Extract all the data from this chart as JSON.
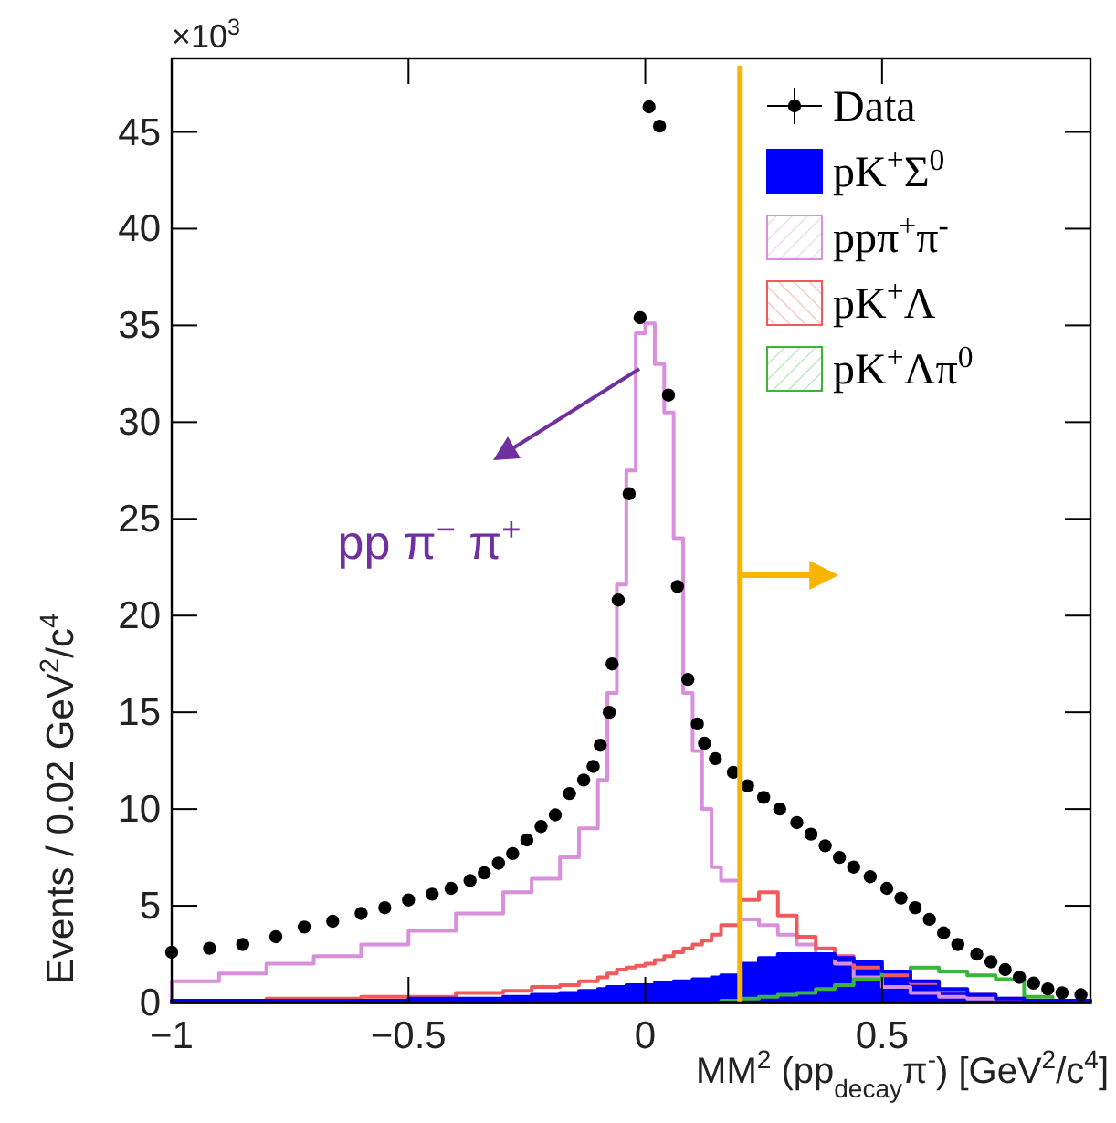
{
  "chart_data": {
    "type": "histogram",
    "xlabel": "MM$^{2}$ (pp$_{decay}$π$^{-}$) [GeV$^{2}$/c$^{4}$]",
    "ylabel": "Events / 0.02 GeV$^{2}$/c$^{4}$",
    "annotations": [
      "×10$^{3}$",
      "pp π$^{−}$ π$^{+}$"
    ],
    "xlim": [
      -1,
      0.94
    ],
    "ylim": [
      0,
      48.8
    ],
    "xticks": [
      {
        "value": -1,
        "label": "−1"
      },
      {
        "value": -0.5,
        "label": "−0.5"
      },
      0,
      0.5
    ],
    "yticks": [
      0,
      5,
      10,
      15,
      20,
      25,
      30,
      35,
      40,
      45
    ],
    "bins": [
      -1,
      -0.9,
      -0.8,
      -0.7,
      -0.6,
      -0.5,
      -0.4,
      -0.3,
      -0.24,
      -0.18,
      -0.14,
      -0.1,
      -0.08,
      -0.06,
      -0.04,
      -0.02,
      0,
      0.02,
      0.04,
      0.06,
      0.08,
      0.1,
      0.12,
      0.14,
      0.16,
      0.2,
      0.24,
      0.28,
      0.32,
      0.36,
      0.4,
      0.44,
      0.5,
      0.56,
      0.62,
      0.68,
      0.74,
      0.8,
      0.86,
      0.94
    ],
    "series": [
      {
        "name": "Data",
        "type": "scatter",
        "marker": "circle",
        "color": "#000000",
        "x": [
          -1,
          -0.92,
          -0.85,
          -0.78,
          -0.72,
          -0.66,
          -0.6,
          -0.55,
          -0.5,
          -0.45,
          -0.41,
          -0.37,
          -0.34,
          -0.31,
          -0.28,
          -0.25,
          -0.22,
          -0.19,
          -0.16,
          -0.13,
          -0.11,
          -0.095,
          -0.076,
          -0.07,
          -0.057,
          -0.034,
          -0.011,
          0.008,
          0.03,
          0.049,
          0.068,
          0.09,
          0.11,
          0.125,
          0.148,
          0.186,
          0.216,
          0.25,
          0.284,
          0.32,
          0.35,
          0.38,
          0.41,
          0.44,
          0.475,
          0.51,
          0.54,
          0.57,
          0.6,
          0.63,
          0.66,
          0.7,
          0.73,
          0.76,
          0.79,
          0.82,
          0.85,
          0.88,
          0.92
        ],
        "values": [
          2.6,
          2.8,
          3.0,
          3.4,
          3.9,
          4.2,
          4.6,
          4.9,
          5.3,
          5.6,
          5.9,
          6.3,
          6.7,
          7.2,
          7.7,
          8.4,
          9.1,
          9.7,
          10.8,
          11.5,
          12.2,
          13.3,
          15,
          17.5,
          20.8,
          26.3,
          35.4,
          46.3,
          45.3,
          31.4,
          21.5,
          16.7,
          14.4,
          13.4,
          12.6,
          11.9,
          11.2,
          10.6,
          10,
          9.3,
          8.7,
          8.1,
          7.5,
          7.0,
          6.5,
          5.9,
          5.4,
          4.9,
          4.3,
          3.6,
          3.0,
          2.5,
          2.1,
          1.7,
          1.3,
          1.0,
          0.7,
          0.5,
          0.4
        ]
      },
      {
        "name": "pK$^{+}$Σ$^{0}$",
        "color": "#0000ff",
        "values": [
          0.1,
          0.1,
          0.1,
          0.1,
          0.1,
          0.2,
          0.2,
          0.3,
          0.4,
          0.5,
          0.6,
          0.7,
          0.8,
          0.8,
          0.9,
          0.9,
          0.9,
          1.0,
          1.0,
          1.1,
          1.1,
          1.2,
          1.2,
          1.3,
          1.4,
          2.0,
          2.3,
          2.5,
          2.5,
          2.5,
          2.3,
          2.1,
          1.6,
          1.1,
          0.7,
          0.4,
          0.2,
          0.1,
          0.1
        ]
      },
      {
        "name": "ppπ$^{+}$π$^{-}$",
        "color": "#d98fdc",
        "values": [
          1.1,
          1.5,
          2.0,
          2.4,
          3.0,
          3.7,
          4.6,
          5.7,
          6.4,
          7.5,
          9.0,
          11.5,
          16,
          21.6,
          27.5,
          34.6,
          35.1,
          33,
          30.5,
          24,
          16,
          13,
          10,
          7,
          6.3,
          4.3,
          4.0,
          3.5,
          3.0,
          2.5,
          2.0,
          1.3,
          0.8,
          0.5,
          0.3,
          0.2,
          0.1,
          0.1,
          0
        ]
      },
      {
        "name": "pK$^{+}$Λ",
        "color": "#f05a5a",
        "values": [
          0.1,
          0.1,
          0.2,
          0.2,
          0.3,
          0.3,
          0.5,
          0.6,
          0.8,
          0.9,
          1.1,
          1.3,
          1.5,
          1.7,
          1.8,
          1.9,
          2.0,
          2.2,
          2.4,
          2.6,
          2.8,
          3.0,
          3.2,
          3.5,
          4.0,
          5.3,
          5.7,
          4.5,
          3.4,
          2.8,
          2.4,
          1.8,
          1.4,
          1.0,
          0.6,
          0.4,
          0.2,
          0.1,
          0.1
        ]
      },
      {
        "name": "pK$^{+}$Λπ$^{0}$",
        "color": "#3cb43c",
        "values": [
          0,
          0,
          0,
          0,
          0,
          0,
          0,
          0,
          0,
          0,
          0,
          0,
          0,
          0,
          0,
          0,
          0,
          0,
          0,
          0,
          0,
          0,
          0,
          0,
          0.1,
          0.2,
          0.3,
          0.4,
          0.5,
          0.7,
          0.9,
          1.2,
          1.6,
          1.8,
          1.6,
          1.4,
          1.2,
          0.3,
          0.1
        ]
      }
    ],
    "ref_lines": [
      {
        "axis": "x",
        "value": 0.2,
        "color": "#f7b500"
      }
    ],
    "legend": "top right"
  }
}
